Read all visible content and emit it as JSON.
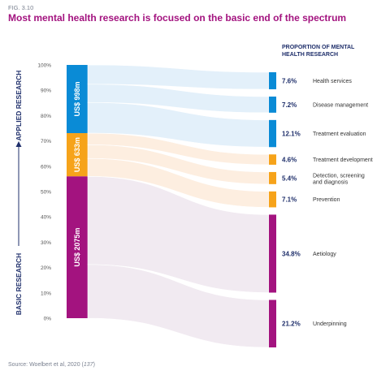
{
  "figure_label": "FIG. 3.10",
  "title": "Most mental health research is focused on the basic end of the spectrum",
  "source": {
    "prefix": "Source: Woelbert et al, 2020 (",
    "ref": "137",
    "suffix": ")"
  },
  "colors": {
    "applied": "#0a8bd6",
    "middle": "#f6a31a",
    "basic": "#a3137f",
    "axis_label": "#1f2f6b",
    "text": "#333333",
    "flow_applied": "#e3f0fa",
    "flow_middle": "#fdeee0",
    "flow_basic": "#f1eaf1"
  },
  "chart_data": {
    "type": "sankey",
    "y_axis": {
      "ticks": [
        "0%",
        "10%",
        "20%",
        "30%",
        "40%",
        "50%",
        "60%",
        "70%",
        "80%",
        "90%",
        "100%"
      ],
      "range": [
        0,
        100
      ]
    },
    "axis_labels": {
      "top": "APPLIED RESEARCH",
      "bottom": "BASIC RESEARCH"
    },
    "legend_title": "PROPORTION OF MENTAL HEALTH RESEARCH",
    "left_segments": [
      {
        "label": "US$ 998m",
        "value": 998,
        "group": "applied"
      },
      {
        "label": "US$ 633m",
        "value": 633,
        "group": "middle"
      },
      {
        "label": "US$ 2075m",
        "value": 2075,
        "group": "basic"
      }
    ],
    "categories": [
      {
        "name": "Health services",
        "percent": 7.6,
        "label": "7.6%",
        "group": "applied"
      },
      {
        "name": "Disease management",
        "percent": 7.2,
        "label": "7.2%",
        "group": "applied"
      },
      {
        "name": "Treatment evaluation",
        "percent": 12.1,
        "label": "12.1%",
        "group": "applied"
      },
      {
        "name": "Treatment development",
        "percent": 4.6,
        "label": "4.6%",
        "group": "middle"
      },
      {
        "name": "Detection, screening and diagnosis",
        "percent": 5.4,
        "label": "5.4%",
        "group": "middle"
      },
      {
        "name": "Prevention",
        "percent": 7.1,
        "label": "7.1%",
        "group": "middle"
      },
      {
        "name": "Aetiology",
        "percent": 34.8,
        "label": "34.8%",
        "group": "basic"
      },
      {
        "name": "Underpinning",
        "percent": 21.2,
        "label": "21.2%",
        "group": "basic"
      }
    ]
  }
}
